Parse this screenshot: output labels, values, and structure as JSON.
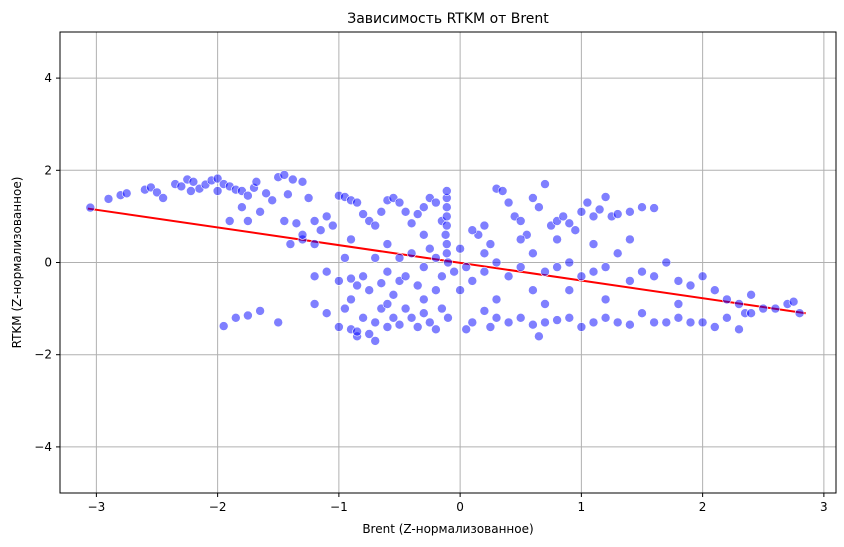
{
  "chart_data": {
    "type": "scatter",
    "title": "Зависимость RTKM от Brent",
    "xlabel": "Brent (Z-нормализованное)",
    "ylabel": "RTKM (Z-нормализованное)",
    "xlim": [
      -3.3,
      3.1
    ],
    "ylim": [
      -5,
      5
    ],
    "xticks": [
      -3,
      -2,
      -1,
      0,
      1,
      2,
      3
    ],
    "yticks": [
      -4,
      -2,
      0,
      2,
      4
    ],
    "xtick_labels": [
      "−3",
      "−2",
      "−1",
      "0",
      "1",
      "2",
      "3"
    ],
    "ytick_labels": [
      "−4",
      "−2",
      "0",
      "2",
      "4"
    ],
    "grid": true,
    "point_color": "#0000ff",
    "point_opacity": 0.5,
    "line_color": "#ff0000",
    "trend_line": {
      "x": [
        -3.07,
        2.85
      ],
      "y": [
        1.17,
        -1.1
      ]
    },
    "points": [
      [
        -3.05,
        1.19
      ],
      [
        -2.9,
        1.38
      ],
      [
        -2.8,
        1.46
      ],
      [
        -2.75,
        1.5
      ],
      [
        -2.6,
        1.58
      ],
      [
        -2.55,
        1.63
      ],
      [
        -2.5,
        1.52
      ],
      [
        -2.45,
        1.4
      ],
      [
        -2.35,
        1.7
      ],
      [
        -2.3,
        1.65
      ],
      [
        -2.25,
        1.8
      ],
      [
        -2.2,
        1.75
      ],
      [
        -2.15,
        1.6
      ],
      [
        -2.1,
        1.69
      ],
      [
        -2.05,
        1.78
      ],
      [
        -2.0,
        1.82
      ],
      [
        -1.95,
        1.7
      ],
      [
        -1.9,
        1.65
      ],
      [
        -1.85,
        1.58
      ],
      [
        -1.8,
        1.55
      ],
      [
        -1.75,
        1.45
      ],
      [
        -1.7,
        1.62
      ],
      [
        -1.68,
        1.75
      ],
      [
        -1.6,
        1.5
      ],
      [
        -1.55,
        1.35
      ],
      [
        -1.5,
        1.85
      ],
      [
        -1.45,
        1.9
      ],
      [
        -1.42,
        1.48
      ],
      [
        -1.38,
        1.8
      ],
      [
        -1.3,
        1.75
      ],
      [
        -1.25,
        1.4
      ],
      [
        -2.22,
        1.55
      ],
      [
        -2.0,
        1.55
      ],
      [
        -1.8,
        1.2
      ],
      [
        -1.75,
        0.9
      ],
      [
        -1.9,
        0.9
      ],
      [
        -1.65,
        1.1
      ],
      [
        -1.45,
        0.9
      ],
      [
        -1.35,
        0.85
      ],
      [
        -1.3,
        0.5
      ],
      [
        -1.2,
        0.4
      ],
      [
        -1.15,
        0.7
      ],
      [
        -1.1,
        1.0
      ],
      [
        -1.05,
        0.8
      ],
      [
        -1.0,
        1.45
      ],
      [
        -0.95,
        1.42
      ],
      [
        -0.9,
        1.35
      ],
      [
        -0.85,
        1.3
      ],
      [
        -0.8,
        1.05
      ],
      [
        -0.75,
        0.9
      ],
      [
        -0.7,
        0.8
      ],
      [
        -0.65,
        1.1
      ],
      [
        -0.6,
        1.35
      ],
      [
        -0.55,
        1.4
      ],
      [
        -0.5,
        1.3
      ],
      [
        -0.45,
        1.1
      ],
      [
        -0.4,
        0.85
      ],
      [
        -0.35,
        1.05
      ],
      [
        -0.3,
        1.2
      ],
      [
        -0.25,
        1.4
      ],
      [
        -0.2,
        1.3
      ],
      [
        -0.15,
        0.9
      ],
      [
        -0.12,
        0.6
      ],
      [
        -0.11,
        0.2
      ],
      [
        -0.11,
        0.4
      ],
      [
        -0.11,
        0.8
      ],
      [
        -0.11,
        1.0
      ],
      [
        -0.11,
        1.2
      ],
      [
        -0.11,
        1.4
      ],
      [
        -0.11,
        1.55
      ],
      [
        -1.3,
        0.6
      ],
      [
        -1.4,
        0.4
      ],
      [
        -1.2,
        -0.3
      ],
      [
        -1.1,
        -0.2
      ],
      [
        -1.0,
        -0.4
      ],
      [
        -0.95,
        0.1
      ],
      [
        -0.9,
        -0.35
      ],
      [
        -0.85,
        -0.5
      ],
      [
        -0.8,
        -0.3
      ],
      [
        -0.75,
        -0.6
      ],
      [
        -0.7,
        0.1
      ],
      [
        -0.65,
        -0.45
      ],
      [
        -0.6,
        -0.2
      ],
      [
        -0.55,
        -0.7
      ],
      [
        -0.5,
        -0.4
      ],
      [
        -0.45,
        -0.3
      ],
      [
        -0.4,
        0.2
      ],
      [
        -0.35,
        -0.5
      ],
      [
        -0.3,
        -0.1
      ],
      [
        -0.25,
        0.3
      ],
      [
        -0.2,
        -0.6
      ],
      [
        -0.15,
        -0.3
      ],
      [
        -0.1,
        0.0
      ],
      [
        -0.05,
        -0.2
      ],
      [
        0.0,
        0.3
      ],
      [
        0.05,
        -0.1
      ],
      [
        0.1,
        -0.4
      ],
      [
        0.15,
        0.6
      ],
      [
        0.2,
        0.8
      ],
      [
        0.25,
        0.4
      ],
      [
        0.3,
        1.6
      ],
      [
        0.35,
        1.55
      ],
      [
        0.4,
        1.3
      ],
      [
        0.45,
        1.0
      ],
      [
        0.5,
        0.9
      ],
      [
        0.55,
        0.6
      ],
      [
        0.6,
        1.4
      ],
      [
        0.65,
        1.2
      ],
      [
        0.7,
        1.7
      ],
      [
        0.75,
        0.8
      ],
      [
        0.8,
        0.9
      ],
      [
        0.85,
        1.0
      ],
      [
        0.9,
        0.85
      ],
      [
        0.95,
        0.7
      ],
      [
        1.0,
        1.1
      ],
      [
        1.05,
        1.3
      ],
      [
        1.1,
        1.0
      ],
      [
        1.15,
        1.15
      ],
      [
        1.2,
        1.42
      ],
      [
        1.25,
        1.0
      ],
      [
        1.3,
        1.05
      ],
      [
        1.4,
        1.1
      ],
      [
        1.5,
        1.2
      ],
      [
        1.6,
        1.18
      ],
      [
        0.2,
        -0.2
      ],
      [
        0.3,
        0.0
      ],
      [
        0.4,
        -0.3
      ],
      [
        0.5,
        -0.1
      ],
      [
        0.6,
        0.2
      ],
      [
        0.7,
        -0.2
      ],
      [
        0.8,
        -0.1
      ],
      [
        0.9,
        0.0
      ],
      [
        1.0,
        -0.3
      ],
      [
        1.1,
        -0.2
      ],
      [
        1.2,
        -0.1
      ],
      [
        1.3,
        0.2
      ],
      [
        1.4,
        -0.4
      ],
      [
        1.5,
        -0.2
      ],
      [
        1.6,
        -0.3
      ],
      [
        1.7,
        0.0
      ],
      [
        1.8,
        -0.4
      ],
      [
        1.9,
        -0.5
      ],
      [
        2.0,
        -0.3
      ],
      [
        2.1,
        -0.6
      ],
      [
        2.2,
        -0.8
      ],
      [
        2.3,
        -0.9
      ],
      [
        2.4,
        -0.7
      ],
      [
        2.5,
        -1.0
      ],
      [
        2.6,
        -1.0
      ],
      [
        2.7,
        -0.9
      ],
      [
        2.75,
        -0.85
      ],
      [
        2.8,
        -1.1
      ],
      [
        -1.95,
        -1.38
      ],
      [
        -1.85,
        -1.2
      ],
      [
        -1.75,
        -1.15
      ],
      [
        -1.65,
        -1.05
      ],
      [
        -1.5,
        -1.3
      ],
      [
        -1.2,
        -0.9
      ],
      [
        -1.1,
        -1.1
      ],
      [
        -1.0,
        -1.4
      ],
      [
        -0.95,
        -1.0
      ],
      [
        -0.9,
        -1.45
      ],
      [
        -0.85,
        -1.6
      ],
      [
        -0.8,
        -1.2
      ],
      [
        -0.75,
        -1.55
      ],
      [
        -0.7,
        -1.3
      ],
      [
        -0.65,
        -1.0
      ],
      [
        -0.6,
        -1.4
      ],
      [
        -0.55,
        -1.2
      ],
      [
        -0.5,
        -1.35
      ],
      [
        -0.45,
        -1.0
      ],
      [
        -0.4,
        -1.2
      ],
      [
        -0.35,
        -1.4
      ],
      [
        -0.3,
        -1.1
      ],
      [
        -0.25,
        -1.3
      ],
      [
        -0.2,
        -1.45
      ],
      [
        -0.15,
        -1.0
      ],
      [
        -0.1,
        -1.2
      ],
      [
        0.05,
        -1.45
      ],
      [
        0.1,
        -1.3
      ],
      [
        0.2,
        -1.05
      ],
      [
        0.25,
        -1.4
      ],
      [
        0.3,
        -1.2
      ],
      [
        0.4,
        -1.3
      ],
      [
        0.5,
        -1.2
      ],
      [
        0.6,
        -1.35
      ],
      [
        0.7,
        -1.3
      ],
      [
        0.8,
        -1.25
      ],
      [
        0.9,
        -1.2
      ],
      [
        1.0,
        -1.4
      ],
      [
        1.1,
        -1.3
      ],
      [
        1.2,
        -1.2
      ],
      [
        1.3,
        -1.3
      ],
      [
        1.4,
        -1.35
      ],
      [
        1.5,
        -1.1
      ],
      [
        1.6,
        -1.3
      ],
      [
        1.7,
        -1.3
      ],
      [
        1.8,
        -1.2
      ],
      [
        1.9,
        -1.3
      ],
      [
        2.0,
        -1.3
      ],
      [
        2.1,
        -1.4
      ],
      [
        2.2,
        -1.2
      ],
      [
        2.3,
        -1.45
      ],
      [
        2.35,
        -1.1
      ],
      [
        -0.7,
        -1.7
      ],
      [
        -0.85,
        -1.5
      ],
      [
        0.65,
        -1.6
      ],
      [
        -1.2,
        0.9
      ],
      [
        -0.9,
        0.5
      ],
      [
        -0.6,
        0.4
      ],
      [
        -0.3,
        0.6
      ],
      [
        0.1,
        0.7
      ],
      [
        0.5,
        0.5
      ],
      [
        0.8,
        0.5
      ],
      [
        1.1,
        0.4
      ],
      [
        1.4,
        0.5
      ],
      [
        -0.5,
        0.1
      ],
      [
        -0.2,
        0.1
      ],
      [
        0.2,
        0.2
      ],
      [
        0.6,
        -0.6
      ],
      [
        0.9,
        -0.6
      ],
      [
        -0.9,
        -0.8
      ],
      [
        -0.6,
        -0.9
      ],
      [
        -0.3,
        -0.8
      ],
      [
        0.0,
        -0.6
      ],
      [
        0.3,
        -0.8
      ],
      [
        0.7,
        -0.9
      ],
      [
        1.2,
        -0.8
      ],
      [
        1.8,
        -0.9
      ],
      [
        2.4,
        -1.1
      ]
    ]
  }
}
